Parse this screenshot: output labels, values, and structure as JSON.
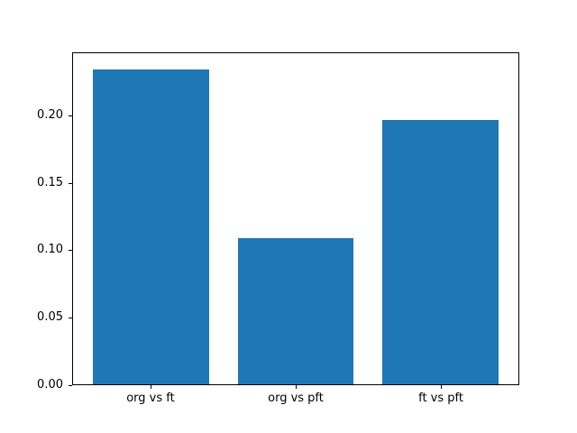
{
  "chart_data": {
    "type": "bar",
    "title": "",
    "xlabel": "",
    "ylabel": "",
    "categories": [
      "org vs ft",
      "org vs pft",
      "ft vs pft"
    ],
    "x": [
      0,
      1,
      2
    ],
    "values": [
      0.235,
      0.109,
      0.197
    ],
    "bar_width": 0.8,
    "bar_color": "#1f77b4",
    "xlim": [
      -0.54,
      2.54
    ],
    "ylim": [
      0,
      0.2468
    ],
    "yticks": [
      0.0,
      0.05,
      0.1,
      0.15,
      0.2
    ],
    "ytick_labels": [
      "0.00",
      "0.05",
      "0.10",
      "0.15",
      "0.20"
    ],
    "grid": false,
    "legend": "none"
  }
}
